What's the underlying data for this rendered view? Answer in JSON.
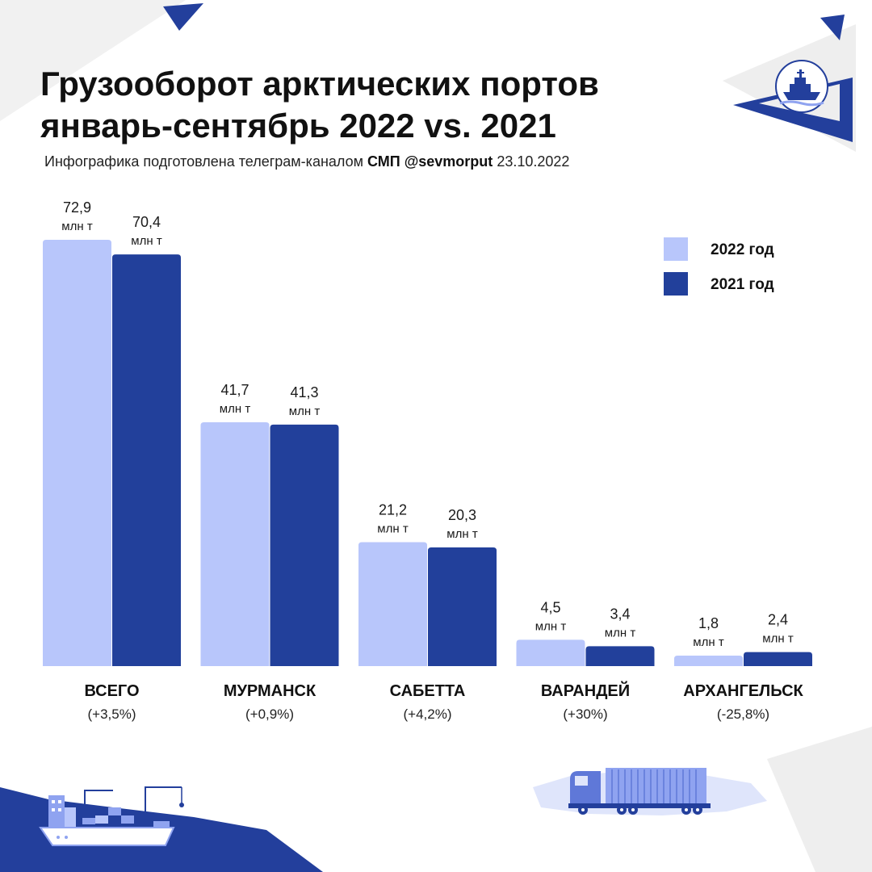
{
  "title": {
    "line1": "Грузооборот арктических портов",
    "line2": "январь-сентябрь 2022 vs. 2021"
  },
  "subtitle": {
    "prefix": "Инфографика подготовлена телеграм-каналом",
    "channel": "СМП @sevmorput",
    "date": "23.10.2022"
  },
  "colors": {
    "series_2022": "#b8c6fb",
    "series_2021": "#22409b",
    "decor_navy": "#233f9c",
    "decor_grey": "#eeeeee",
    "illustration_light": "#8fa3f0"
  },
  "icons": {
    "logo": "icebreaker-ship-logo-icon",
    "left_illustration": "cargo-ship-port-icon",
    "right_illustration": "container-truck-icon"
  },
  "chart_data": {
    "type": "bar",
    "categories": [
      "ВСЕГО",
      "МУРМАНСК",
      "САБЕТТА",
      "ВАРАНДЕЙ",
      "АРХАНГЕЛЬСК"
    ],
    "changes": [
      "(+3,5%)",
      "(+0,9%)",
      "(+4,2%)",
      "(+30%)",
      "(-25,8%)"
    ],
    "unit": "млн т",
    "series": [
      {
        "name": "2022 год",
        "values": [
          72.9,
          41.7,
          21.2,
          4.5,
          1.8
        ],
        "labels": [
          "72,9",
          "41,7",
          "21,2",
          "4,5",
          "1,8"
        ]
      },
      {
        "name": "2021 год",
        "values": [
          70.4,
          41.3,
          20.3,
          3.4,
          2.4
        ],
        "labels": [
          "70,4",
          "41,3",
          "20,3",
          "3,4",
          "2,4"
        ]
      }
    ],
    "ylim": [
      0,
      72.9
    ],
    "legend_position": "top-right",
    "grid": false,
    "xlabel": "",
    "ylabel": ""
  }
}
